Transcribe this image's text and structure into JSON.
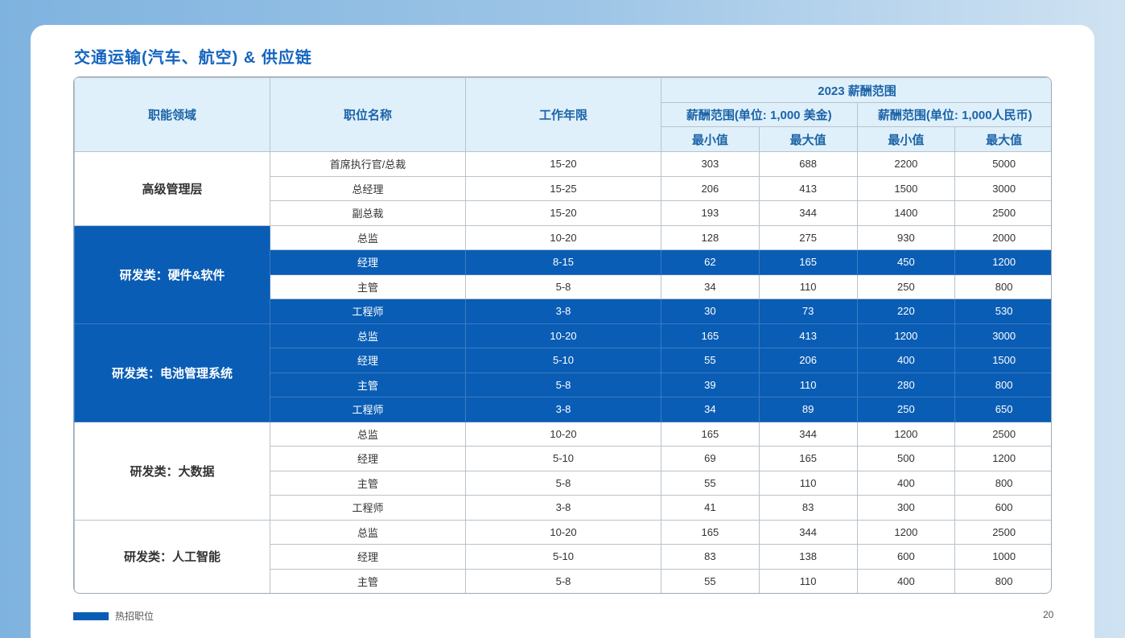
{
  "title": "交通运输(汽车、航空) & 供应链",
  "header": {
    "function_area": "职能领域",
    "position": "职位名称",
    "experience": "工作年限",
    "salary_range_2023": "2023 薪酬范围",
    "usd_range": "薪酬范围(单位: 1,000 美金)",
    "rmb_range": "薪酬范围(单位: 1,000人民币)",
    "min": "最小值",
    "max": "最大值"
  },
  "groups": [
    {
      "category": "高级管理层",
      "hot": false,
      "rows": [
        {
          "position": "首席执行官/总裁",
          "years": "15-20",
          "usd_min": "303",
          "usd_max": "688",
          "rmb_min": "2200",
          "rmb_max": "5000",
          "hot": false
        },
        {
          "position": "总经理",
          "years": "15-25",
          "usd_min": "206",
          "usd_max": "413",
          "rmb_min": "1500",
          "rmb_max": "3000",
          "hot": false
        },
        {
          "position": "副总裁",
          "years": "15-20",
          "usd_min": "193",
          "usd_max": "344",
          "rmb_min": "1400",
          "rmb_max": "2500",
          "hot": false
        }
      ]
    },
    {
      "category": "研发类：硬件&软件",
      "hot": true,
      "rows": [
        {
          "position": "总监",
          "years": "10-20",
          "usd_min": "128",
          "usd_max": "275",
          "rmb_min": "930",
          "rmb_max": "2000",
          "hot": false
        },
        {
          "position": "经理",
          "years": "8-15",
          "usd_min": "62",
          "usd_max": "165",
          "rmb_min": "450",
          "rmb_max": "1200",
          "hot": true
        },
        {
          "position": "主管",
          "years": "5-8",
          "usd_min": "34",
          "usd_max": "110",
          "rmb_min": "250",
          "rmb_max": "800",
          "hot": false
        },
        {
          "position": "工程师",
          "years": "3-8",
          "usd_min": "30",
          "usd_max": "73",
          "rmb_min": "220",
          "rmb_max": "530",
          "hot": true
        }
      ]
    },
    {
      "category": "研发类：电池管理系统",
      "hot": true,
      "rows": [
        {
          "position": "总监",
          "years": "10-20",
          "usd_min": "165",
          "usd_max": "413",
          "rmb_min": "1200",
          "rmb_max": "3000",
          "hot": true
        },
        {
          "position": "经理",
          "years": "5-10",
          "usd_min": "55",
          "usd_max": "206",
          "rmb_min": "400",
          "rmb_max": "1500",
          "hot": true
        },
        {
          "position": "主管",
          "years": "5-8",
          "usd_min": "39",
          "usd_max": "110",
          "rmb_min": "280",
          "rmb_max": "800",
          "hot": true
        },
        {
          "position": "工程师",
          "years": "3-8",
          "usd_min": "34",
          "usd_max": "89",
          "rmb_min": "250",
          "rmb_max": "650",
          "hot": true
        }
      ]
    },
    {
      "category": "研发类：大数据",
      "hot": false,
      "rows": [
        {
          "position": "总监",
          "years": "10-20",
          "usd_min": "165",
          "usd_max": "344",
          "rmb_min": "1200",
          "rmb_max": "2500",
          "hot": false
        },
        {
          "position": "经理",
          "years": "5-10",
          "usd_min": "69",
          "usd_max": "165",
          "rmb_min": "500",
          "rmb_max": "1200",
          "hot": false
        },
        {
          "position": "主管",
          "years": "5-8",
          "usd_min": "55",
          "usd_max": "110",
          "rmb_min": "400",
          "rmb_max": "800",
          "hot": false
        },
        {
          "position": "工程师",
          "years": "3-8",
          "usd_min": "41",
          "usd_max": "83",
          "rmb_min": "300",
          "rmb_max": "600",
          "hot": false
        }
      ]
    },
    {
      "category": "研发类：人工智能",
      "hot": false,
      "rows": [
        {
          "position": "总监",
          "years": "10-20",
          "usd_min": "165",
          "usd_max": "344",
          "rmb_min": "1200",
          "rmb_max": "2500",
          "hot": false
        },
        {
          "position": "经理",
          "years": "5-10",
          "usd_min": "83",
          "usd_max": "138",
          "rmb_min": "600",
          "rmb_max": "1000",
          "hot": false
        },
        {
          "position": "主管",
          "years": "5-8",
          "usd_min": "55",
          "usd_max": "110",
          "rmb_min": "400",
          "rmb_max": "800",
          "hot": false
        }
      ]
    }
  ],
  "legend": {
    "label": "热招职位",
    "color": "#0a5db5"
  },
  "page_number": "20"
}
